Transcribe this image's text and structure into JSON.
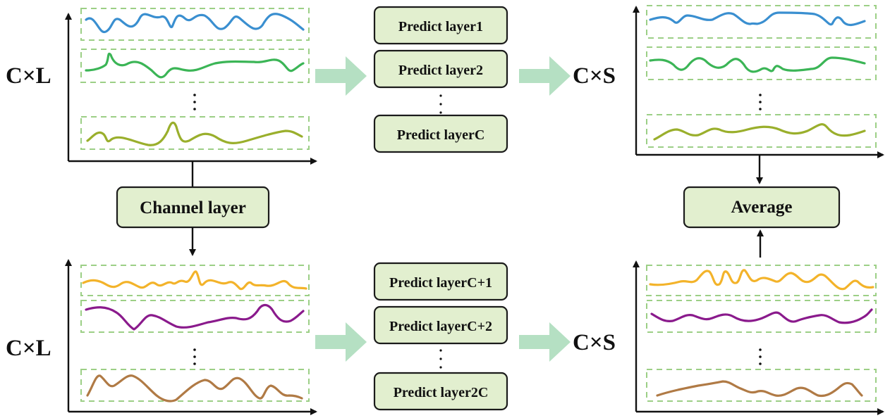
{
  "labels": {
    "input_top": "C×L",
    "input_bottom": "C×L",
    "output_top": "C×S",
    "output_bottom": "C×S"
  },
  "boxes": {
    "channel_layer": "Channel layer",
    "average": "Average",
    "predict_top": [
      "Predict layer1",
      "Predict layer2",
      "Predict layerC"
    ],
    "predict_bottom": [
      "Predict layerC+1",
      "Predict layerC+2",
      "Predict layer2C"
    ]
  },
  "colors": {
    "box_fill": "#e2efcf",
    "dashed_border": "#9ccf86",
    "flow_arrow": "#b5e0c3",
    "wave_blue": "#3a8fd0",
    "wave_green": "#3bb556",
    "wave_olive": "#9aaf2c",
    "wave_orange": "#f3b32a",
    "wave_purple": "#8a1a8c",
    "wave_brown": "#b07a45"
  }
}
